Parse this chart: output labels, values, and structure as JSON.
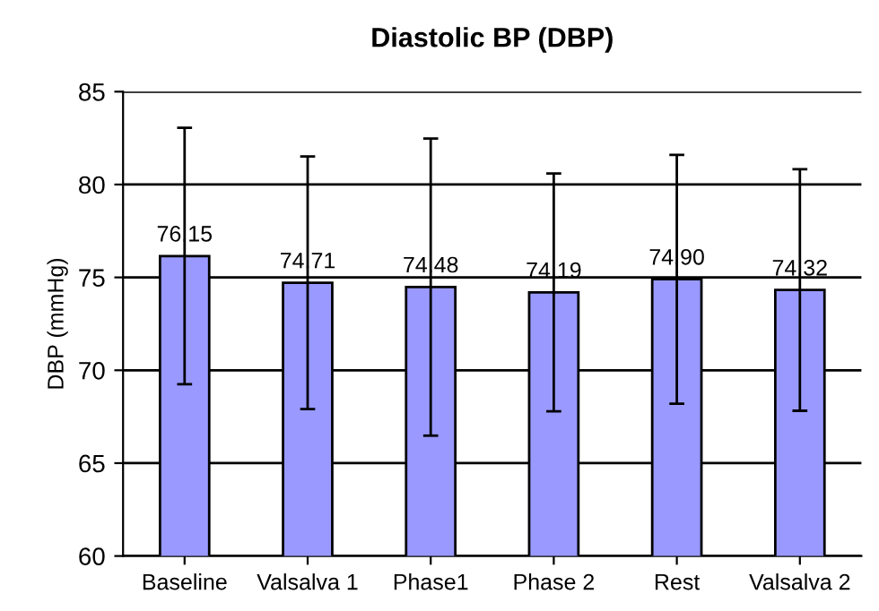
{
  "chart_data": {
    "type": "bar",
    "title": "Diastolic BP (DBP)",
    "ylabel": "DBP (mmHg)",
    "categories": [
      "Baseline",
      "Valsalva 1",
      "Phase1",
      "Phase 2",
      "Rest",
      "Valsalva 2"
    ],
    "values": [
      76.15,
      74.71,
      74.48,
      74.19,
      74.9,
      74.32
    ],
    "value_labels": [
      "76.15",
      "74.71",
      "74.48",
      "74.19",
      "74.90",
      "74.32"
    ],
    "errors": [
      6.9,
      6.8,
      8.0,
      6.4,
      6.7,
      6.5
    ],
    "color": "#9999ff",
    "ylim": [
      60,
      85
    ],
    "yticks": [
      60,
      65,
      70,
      75,
      80,
      85
    ],
    "grid": "y"
  }
}
